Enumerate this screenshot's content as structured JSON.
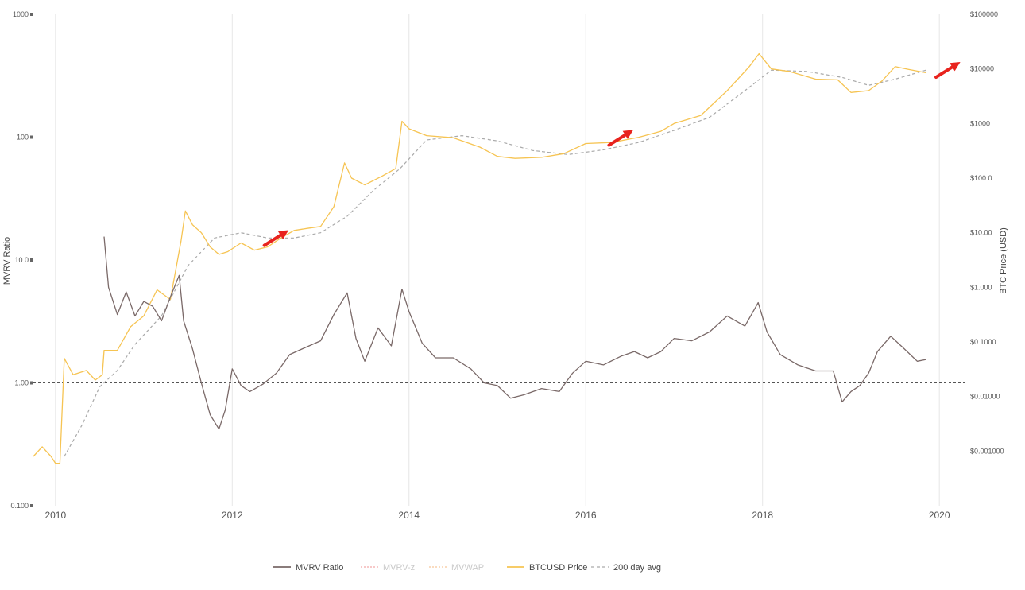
{
  "chart_data": {
    "type": "line",
    "title": "",
    "y_left_label": "MVRV Ratio",
    "y_right_label": "BTC Price (USD)",
    "x_ticks": [
      "2010",
      "2012",
      "2014",
      "2016",
      "2018",
      "2020"
    ],
    "y_left_ticks": [
      "0.100",
      "1.00",
      "10.0",
      "100",
      "1000"
    ],
    "y_right_ticks": [
      "$0.001000",
      "$0.01000",
      "$0.1000",
      "$1.000",
      "$10.00",
      "$100.0",
      "$1000",
      "$10000",
      "$100000"
    ],
    "reference_line": {
      "series": "MVRV Ratio",
      "value": 1.0
    },
    "x_range": [
      2009.75,
      2020.25
    ],
    "y_left_range": [
      0.1,
      1000
    ],
    "y_right_range": [
      0.0001,
      100000
    ],
    "scale": "log",
    "legend": {
      "position": "bottom-center"
    },
    "series": [
      {
        "name": "MVRV Ratio",
        "axis": "left",
        "color": "#7a6968",
        "style": "solid",
        "x": [
          2010.55,
          2010.6,
          2010.7,
          2010.8,
          2010.9,
          2011.0,
          2011.1,
          2011.2,
          2011.3,
          2011.4,
          2011.45,
          2011.55,
          2011.65,
          2011.75,
          2011.85,
          2011.92,
          2012.0,
          2012.1,
          2012.2,
          2012.35,
          2012.5,
          2012.65,
          2012.8,
          2013.0,
          2013.15,
          2013.3,
          2013.4,
          2013.5,
          2013.65,
          2013.8,
          2013.92,
          2014.0,
          2014.15,
          2014.3,
          2014.5,
          2014.7,
          2014.85,
          2015.0,
          2015.15,
          2015.3,
          2015.5,
          2015.7,
          2015.85,
          2016.0,
          2016.2,
          2016.4,
          2016.55,
          2016.7,
          2016.85,
          2017.0,
          2017.2,
          2017.4,
          2017.6,
          2017.8,
          2017.95,
          2018.05,
          2018.2,
          2018.4,
          2018.6,
          2018.8,
          2018.9,
          2019.0,
          2019.1,
          2019.2,
          2019.3,
          2019.45,
          2019.6,
          2019.75,
          2019.85
        ],
        "values": [
          15.5,
          6.0,
          3.6,
          5.5,
          3.5,
          4.6,
          4.2,
          3.2,
          5.0,
          7.5,
          3.2,
          1.9,
          1.0,
          0.55,
          0.42,
          0.6,
          1.3,
          0.95,
          0.85,
          0.98,
          1.2,
          1.7,
          1.9,
          2.2,
          3.6,
          5.4,
          2.3,
          1.5,
          2.8,
          2.0,
          5.8,
          3.8,
          2.1,
          1.6,
          1.6,
          1.3,
          1.0,
          0.95,
          0.75,
          0.8,
          0.9,
          0.85,
          1.2,
          1.5,
          1.4,
          1.65,
          1.8,
          1.6,
          1.8,
          2.3,
          2.2,
          2.6,
          3.5,
          2.9,
          4.5,
          2.6,
          1.7,
          1.4,
          1.25,
          1.25,
          0.7,
          0.85,
          0.95,
          1.2,
          1.8,
          2.4,
          1.9,
          1.5,
          1.55
        ]
      },
      {
        "name": "MVRV-z",
        "axis": "left",
        "color": "#f2a9a9",
        "style": "dotted"
      },
      {
        "name": "MVWAP",
        "axis": "right",
        "color": "#f7c79b",
        "style": "dotted"
      },
      {
        "name": "BTCUSD Price",
        "axis": "right",
        "color": "#f6c453",
        "style": "solid",
        "x": [
          2009.75,
          2009.85,
          2009.95,
          2010.0,
          2010.05,
          2010.1,
          2010.2,
          2010.35,
          2010.45,
          2010.53,
          2010.55,
          2010.7,
          2010.85,
          2011.0,
          2011.15,
          2011.3,
          2011.42,
          2011.47,
          2011.55,
          2011.65,
          2011.75,
          2011.85,
          2011.95,
          2012.1,
          2012.25,
          2012.4,
          2012.55,
          2012.7,
          2012.85,
          2013.0,
          2013.15,
          2013.27,
          2013.35,
          2013.5,
          2013.7,
          2013.85,
          2013.92,
          2014.0,
          2014.2,
          2014.5,
          2014.8,
          2015.0,
          2015.2,
          2015.5,
          2015.75,
          2016.0,
          2016.3,
          2016.6,
          2016.85,
          2017.0,
          2017.3,
          2017.6,
          2017.85,
          2017.96,
          2018.1,
          2018.3,
          2018.6,
          2018.85,
          2019.0,
          2019.2,
          2019.35,
          2019.5,
          2019.65,
          2019.85
        ],
        "values": [
          0.0008,
          0.0012,
          0.0008,
          0.0006,
          0.0006,
          0.05,
          0.025,
          0.03,
          0.02,
          0.025,
          0.07,
          0.07,
          0.19,
          0.3,
          0.9,
          0.6,
          7,
          25,
          14,
          10,
          5.5,
          4,
          4.5,
          6.5,
          4.8,
          5.5,
          8,
          11,
          12,
          13,
          30,
          190,
          100,
          75,
          110,
          150,
          1100,
          800,
          600,
          550,
          370,
          250,
          230,
          240,
          280,
          430,
          450,
          560,
          720,
          1000,
          1400,
          4000,
          11000,
          19000,
          10000,
          9000,
          6500,
          6300,
          3700,
          4000,
          6000,
          11000,
          9800,
          8500
        ]
      },
      {
        "name": "200 day avg",
        "axis": "right",
        "color": "#aaaaaa",
        "style": "dashed",
        "x": [
          2010.1,
          2010.3,
          2010.5,
          2010.7,
          2010.9,
          2011.2,
          2011.5,
          2011.8,
          2012.1,
          2012.4,
          2012.7,
          2013.0,
          2013.3,
          2013.6,
          2013.9,
          2014.2,
          2014.6,
          2015.0,
          2015.4,
          2015.8,
          2016.2,
          2016.6,
          2017.0,
          2017.4,
          2017.8,
          2018.1,
          2018.5,
          2018.9,
          2019.2,
          2019.5,
          2019.85
        ],
        "values": [
          0.0008,
          0.003,
          0.015,
          0.03,
          0.09,
          0.3,
          2.5,
          8,
          10,
          8,
          8,
          10,
          20,
          60,
          150,
          500,
          600,
          480,
          320,
          270,
          330,
          450,
          750,
          1300,
          4000,
          9500,
          9000,
          7000,
          5000,
          6500,
          9500
        ]
      }
    ],
    "annotations": [
      {
        "type": "arrow",
        "color": "#e8231e",
        "x": 2012.5,
        "series": "BTCUSD Price"
      },
      {
        "type": "arrow",
        "color": "#e8231e",
        "x": 2016.4,
        "series": "BTCUSD Price"
      },
      {
        "type": "arrow",
        "color": "#e8231e",
        "x": 2020.1,
        "series": "BTCUSD Price"
      }
    ]
  }
}
